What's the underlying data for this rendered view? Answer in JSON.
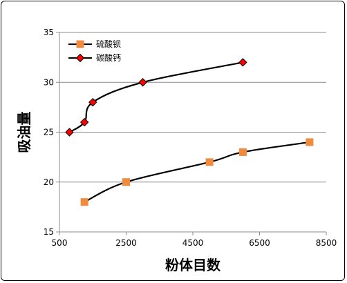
{
  "chart_data": {
    "type": "line",
    "xlabel": "粉体目数",
    "ylabel": "吸油量",
    "xlim": [
      500,
      8500
    ],
    "ylim": [
      15,
      35
    ],
    "x_ticks": [
      500,
      2500,
      4500,
      6500,
      8500
    ],
    "y_ticks": [
      15,
      20,
      25,
      30,
      35
    ],
    "grid": "horizontal",
    "legend_position": "top-left",
    "series": [
      {
        "name": "硫酸钡",
        "marker": "square",
        "color": "#000000",
        "marker_color": "#F08A3C",
        "x": [
          1250,
          2500,
          5000,
          6000,
          8000
        ],
        "y": [
          18,
          20,
          22,
          23,
          24
        ]
      },
      {
        "name": "碳酸钙",
        "marker": "diamond",
        "color": "#000000",
        "marker_color": "#FF0000",
        "x": [
          800,
          1250,
          1500,
          3000,
          6000
        ],
        "y": [
          25,
          26,
          28,
          30,
          32
        ]
      }
    ]
  }
}
